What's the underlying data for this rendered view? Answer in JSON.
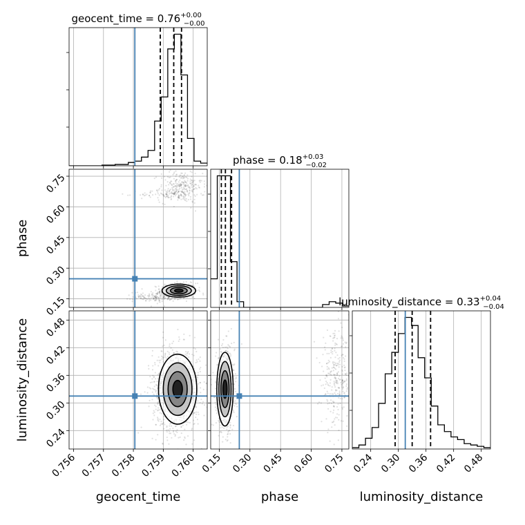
{
  "chart_data": {
    "type": "corner",
    "parameters": [
      "geocent_time",
      "phase",
      "luminosity_distance"
    ],
    "truth_color": "#4682b4",
    "sample_color": "#000000",
    "ranges": {
      "geocent_time": [
        0.75585,
        0.76047
      ],
      "phase": [
        0.108,
        0.784
      ],
      "luminosity_distance": [
        0.2,
        0.5
      ]
    },
    "ticks": {
      "geocent_time": [
        0.756,
        0.757,
        0.758,
        0.759,
        0.76
      ],
      "phase": [
        0.15,
        0.3,
        0.45,
        0.6,
        0.75
      ],
      "luminosity_distance": [
        0.24,
        0.3,
        0.36,
        0.42,
        0.48
      ]
    },
    "tick_labels": {
      "geocent_time": [
        "0.756",
        "0.757",
        "0.758",
        "0.759",
        "0.760"
      ],
      "phase": [
        "0.15",
        "0.30",
        "0.45",
        "0.60",
        "0.75"
      ],
      "luminosity_distance": [
        "0.24",
        "0.30",
        "0.36",
        "0.42",
        "0.48"
      ]
    },
    "truths": {
      "geocent_time": 0.75805,
      "phase": 0.248,
      "luminosity_distance": 0.315
    },
    "titles": [
      {
        "param": "geocent_time",
        "text": "geocent_time = 0.76",
        "plus": "+0.00",
        "minus": "−0.00"
      },
      {
        "param": "phase",
        "text": "phase = 0.18",
        "plus": "+0.03",
        "minus": "−0.02"
      },
      {
        "param": "luminosity_distance",
        "text": "luminosity_distance = 0.33",
        "plus": "+0.04",
        "minus": "−0.04"
      }
    ],
    "quantiles": {
      "geocent_time": [
        0.7589,
        0.75935,
        0.75961
      ],
      "phase": [
        0.16,
        0.18,
        0.21
      ],
      "luminosity_distance": [
        0.293,
        0.33,
        0.37
      ]
    },
    "hist_geocent_time": {
      "bin_edges": [
        0.75585,
        0.75607,
        0.75629,
        0.75651,
        0.75673,
        0.75695,
        0.75717,
        0.75739,
        0.75761,
        0.75783,
        0.75805,
        0.75827,
        0.75849,
        0.75871,
        0.75893,
        0.75915,
        0.75937,
        0.75959,
        0.75981,
        0.76003,
        0.76025,
        0.76047
      ],
      "counts": [
        0,
        0,
        0,
        0,
        0,
        0.5,
        0.5,
        1,
        1,
        2.5,
        3.5,
        6.5,
        11.5,
        33.5,
        51.5,
        87.5,
        98.5,
        68,
        20.5,
        3.5,
        2
      ]
    },
    "hist_phase": {
      "bin_edges": [
        0.108,
        0.1402,
        0.1724,
        0.2046,
        0.2368,
        0.269,
        0.3012,
        0.3334,
        0.3656,
        0.3978,
        0.43,
        0.4622,
        0.4944,
        0.5266,
        0.5588,
        0.591,
        0.6232,
        0.6554,
        0.6876,
        0.7198,
        0.752,
        0.784
      ],
      "counts": [
        20,
        92,
        92,
        32,
        4,
        0,
        0,
        0,
        0,
        0,
        0,
        0,
        0,
        0,
        0,
        0,
        0,
        2,
        4,
        3,
        1
      ]
    },
    "hist_luminosity_distance": {
      "bin_edges": [
        0.2,
        0.2143,
        0.2286,
        0.2429,
        0.2571,
        0.2714,
        0.2857,
        0.3,
        0.3143,
        0.3286,
        0.3429,
        0.3571,
        0.3714,
        0.3857,
        0.4,
        0.4143,
        0.4286,
        0.4429,
        0.4571,
        0.4714,
        0.4857,
        0.5
      ],
      "counts": [
        1,
        3,
        8,
        16,
        34,
        56,
        72,
        86,
        98,
        92,
        68,
        53,
        32,
        18,
        13,
        9,
        7,
        4,
        3,
        2,
        1
      ]
    },
    "contour_levels_sigma": [
      0.5,
      1.0,
      1.5,
      2.0
    ],
    "scatter_regions": {
      "geocent_time__phase": [
        {
          "cx": 0.7595,
          "cy": 0.19,
          "sx": 0.0003,
          "sy": 0.018,
          "n": 500
        },
        {
          "cx": 0.7588,
          "cy": 0.16,
          "sx": 0.0004,
          "sy": 0.012,
          "n": 150
        },
        {
          "cx": 0.7596,
          "cy": 0.7,
          "sx": 0.00035,
          "sy": 0.04,
          "n": 250
        },
        {
          "cx": 0.7592,
          "cy": 0.66,
          "sx": 0.0005,
          "sy": 0.012,
          "n": 90
        }
      ],
      "geocent_time__luminosity_distance": [
        {
          "cx": 0.75945,
          "cy": 0.33,
          "sx": 0.0004,
          "sy": 0.045,
          "n": 1100
        }
      ],
      "phase__luminosity_distance": [
        {
          "cx": 0.18,
          "cy": 0.33,
          "sx": 0.022,
          "sy": 0.045,
          "n": 700
        },
        {
          "cx": 0.72,
          "cy": 0.35,
          "sx": 0.035,
          "sy": 0.05,
          "n": 280
        }
      ]
    },
    "contour_centers": {
      "geocent_time__phase": {
        "cx": 0.75952,
        "cy": 0.19,
        "sx": 0.00028,
        "sy": 0.016
      },
      "geocent_time__luminosity_distance": {
        "cx": 0.75948,
        "cy": 0.33,
        "sx": 0.00032,
        "sy": 0.038
      },
      "phase__luminosity_distance": {
        "cx": 0.178,
        "cy": 0.33,
        "sx": 0.02,
        "sy": 0.04
      }
    },
    "grid": true
  }
}
